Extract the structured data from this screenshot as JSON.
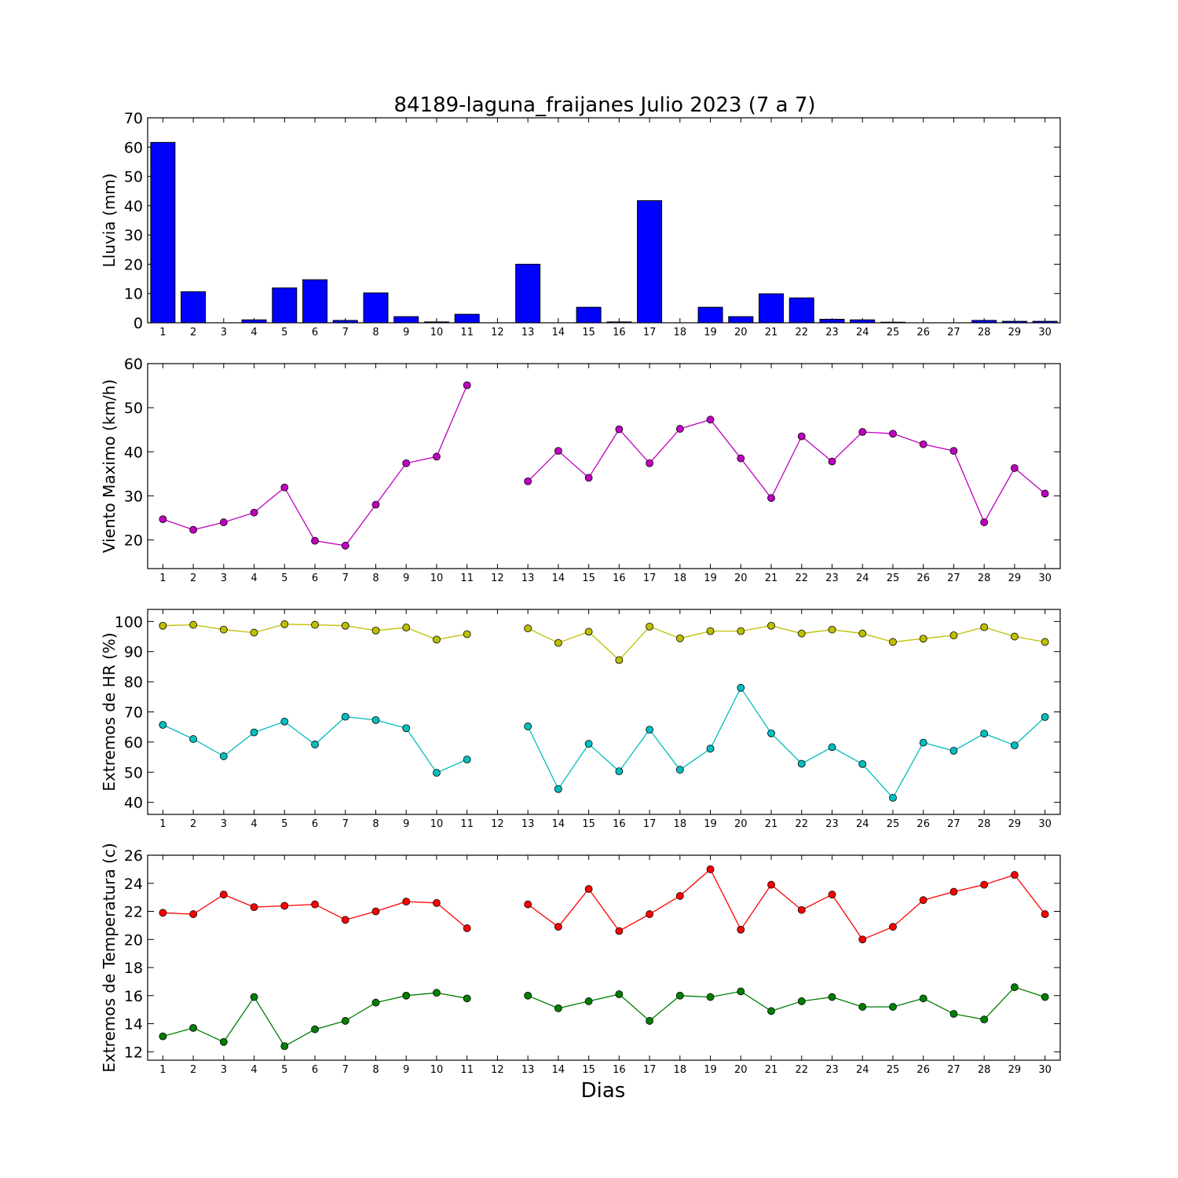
{
  "figure": {
    "title": "84189-laguna_fraijanes Julio 2023  (7 a 7)",
    "xlabel": "Dias"
  },
  "chart_data": [
    {
      "type": "bar",
      "ylabel": "Lluvia (mm)",
      "ylim": [
        0,
        70
      ],
      "yticks": [
        0,
        10,
        20,
        30,
        40,
        50,
        60,
        70
      ],
      "x": [
        1,
        2,
        3,
        4,
        5,
        6,
        7,
        8,
        9,
        10,
        11,
        12,
        13,
        14,
        15,
        16,
        17,
        18,
        19,
        20,
        21,
        22,
        23,
        24,
        25,
        26,
        27,
        28,
        29,
        30
      ],
      "values": [
        61.6,
        10.6,
        0,
        1.0,
        11.9,
        14.7,
        0.8,
        10.2,
        2.1,
        0.3,
        2.9,
        0,
        20.0,
        0,
        5.3,
        0.3,
        41.7,
        0,
        5.3,
        2.1,
        9.9,
        8.5,
        1.2,
        1.0,
        0.2,
        0,
        0,
        0.8,
        0.5,
        0.5
      ],
      "color": "#0000ff"
    },
    {
      "type": "line",
      "ylabel": "Viento Maximo (km/h)",
      "ylim": [
        13.5,
        60
      ],
      "yticks": [
        20,
        30,
        40,
        50,
        60
      ],
      "x": [
        1,
        2,
        3,
        4,
        5,
        6,
        7,
        8,
        9,
        10,
        11,
        12,
        13,
        14,
        15,
        16,
        17,
        18,
        19,
        20,
        21,
        22,
        23,
        24,
        25,
        26,
        27,
        28,
        29,
        30
      ],
      "series": [
        {
          "color": "#bf00bf",
          "values": [
            24.7,
            22.3,
            24.0,
            26.2,
            31.9,
            19.8,
            18.7,
            28.0,
            37.4,
            38.9,
            55.1,
            null,
            33.3,
            40.2,
            34.1,
            45.1,
            37.4,
            45.2,
            47.3,
            38.5,
            29.5,
            43.5,
            37.8,
            44.5,
            44.1,
            41.7,
            40.2,
            24.0,
            36.3,
            30.5
          ]
        }
      ]
    },
    {
      "type": "line",
      "ylabel": "Extremos de HR (%)",
      "ylim": [
        36,
        104
      ],
      "yticks": [
        40,
        50,
        60,
        70,
        80,
        90,
        100
      ],
      "x": [
        1,
        2,
        3,
        4,
        5,
        6,
        7,
        8,
        9,
        10,
        11,
        12,
        13,
        14,
        15,
        16,
        17,
        18,
        19,
        20,
        21,
        22,
        23,
        24,
        25,
        26,
        27,
        28,
        29,
        30
      ],
      "series": [
        {
          "color": "#bfbf00",
          "values": [
            98.6,
            98.9,
            97.3,
            96.3,
            99.1,
            98.9,
            98.6,
            97.0,
            98.0,
            94.0,
            95.8,
            null,
            97.7,
            92.9,
            96.6,
            87.2,
            98.3,
            94.4,
            96.8,
            96.8,
            98.6,
            96.0,
            97.3,
            96.0,
            93.2,
            94.3,
            95.4,
            98.1,
            95.0,
            93.2
          ]
        },
        {
          "color": "#00bfbf",
          "values": [
            65.7,
            61.0,
            55.3,
            63.2,
            66.8,
            59.2,
            68.4,
            67.3,
            64.6,
            49.8,
            54.2,
            null,
            65.2,
            44.4,
            59.4,
            50.3,
            64.1,
            50.8,
            57.8,
            78.0,
            62.9,
            52.8,
            58.3,
            52.7,
            41.5,
            59.8,
            57.1,
            62.8,
            58.9,
            68.3
          ]
        }
      ]
    },
    {
      "type": "line",
      "ylabel": "Extremos de Temperatura (c)",
      "ylim": [
        11.4,
        26
      ],
      "yticks": [
        12,
        14,
        16,
        18,
        20,
        22,
        24,
        26
      ],
      "x": [
        1,
        2,
        3,
        4,
        5,
        6,
        7,
        8,
        9,
        10,
        11,
        12,
        13,
        14,
        15,
        16,
        17,
        18,
        19,
        20,
        21,
        22,
        23,
        24,
        25,
        26,
        27,
        28,
        29,
        30
      ],
      "series": [
        {
          "color": "#ff0000",
          "values": [
            21.9,
            21.8,
            23.2,
            22.3,
            22.4,
            22.5,
            21.4,
            22.0,
            22.7,
            22.6,
            20.8,
            null,
            22.5,
            20.9,
            23.6,
            20.6,
            21.8,
            23.1,
            25.0,
            20.7,
            23.9,
            22.1,
            23.2,
            20.0,
            20.9,
            22.8,
            23.4,
            23.9,
            24.6,
            21.8
          ]
        },
        {
          "color": "#007f00",
          "values": [
            13.1,
            13.7,
            12.7,
            15.9,
            12.4,
            13.6,
            14.2,
            15.5,
            16.0,
            16.2,
            15.8,
            null,
            16.0,
            15.1,
            15.6,
            16.1,
            14.2,
            16.0,
            15.9,
            16.3,
            14.9,
            15.6,
            15.9,
            15.2,
            15.2,
            15.8,
            14.7,
            14.3,
            16.6,
            15.9
          ]
        }
      ]
    }
  ]
}
